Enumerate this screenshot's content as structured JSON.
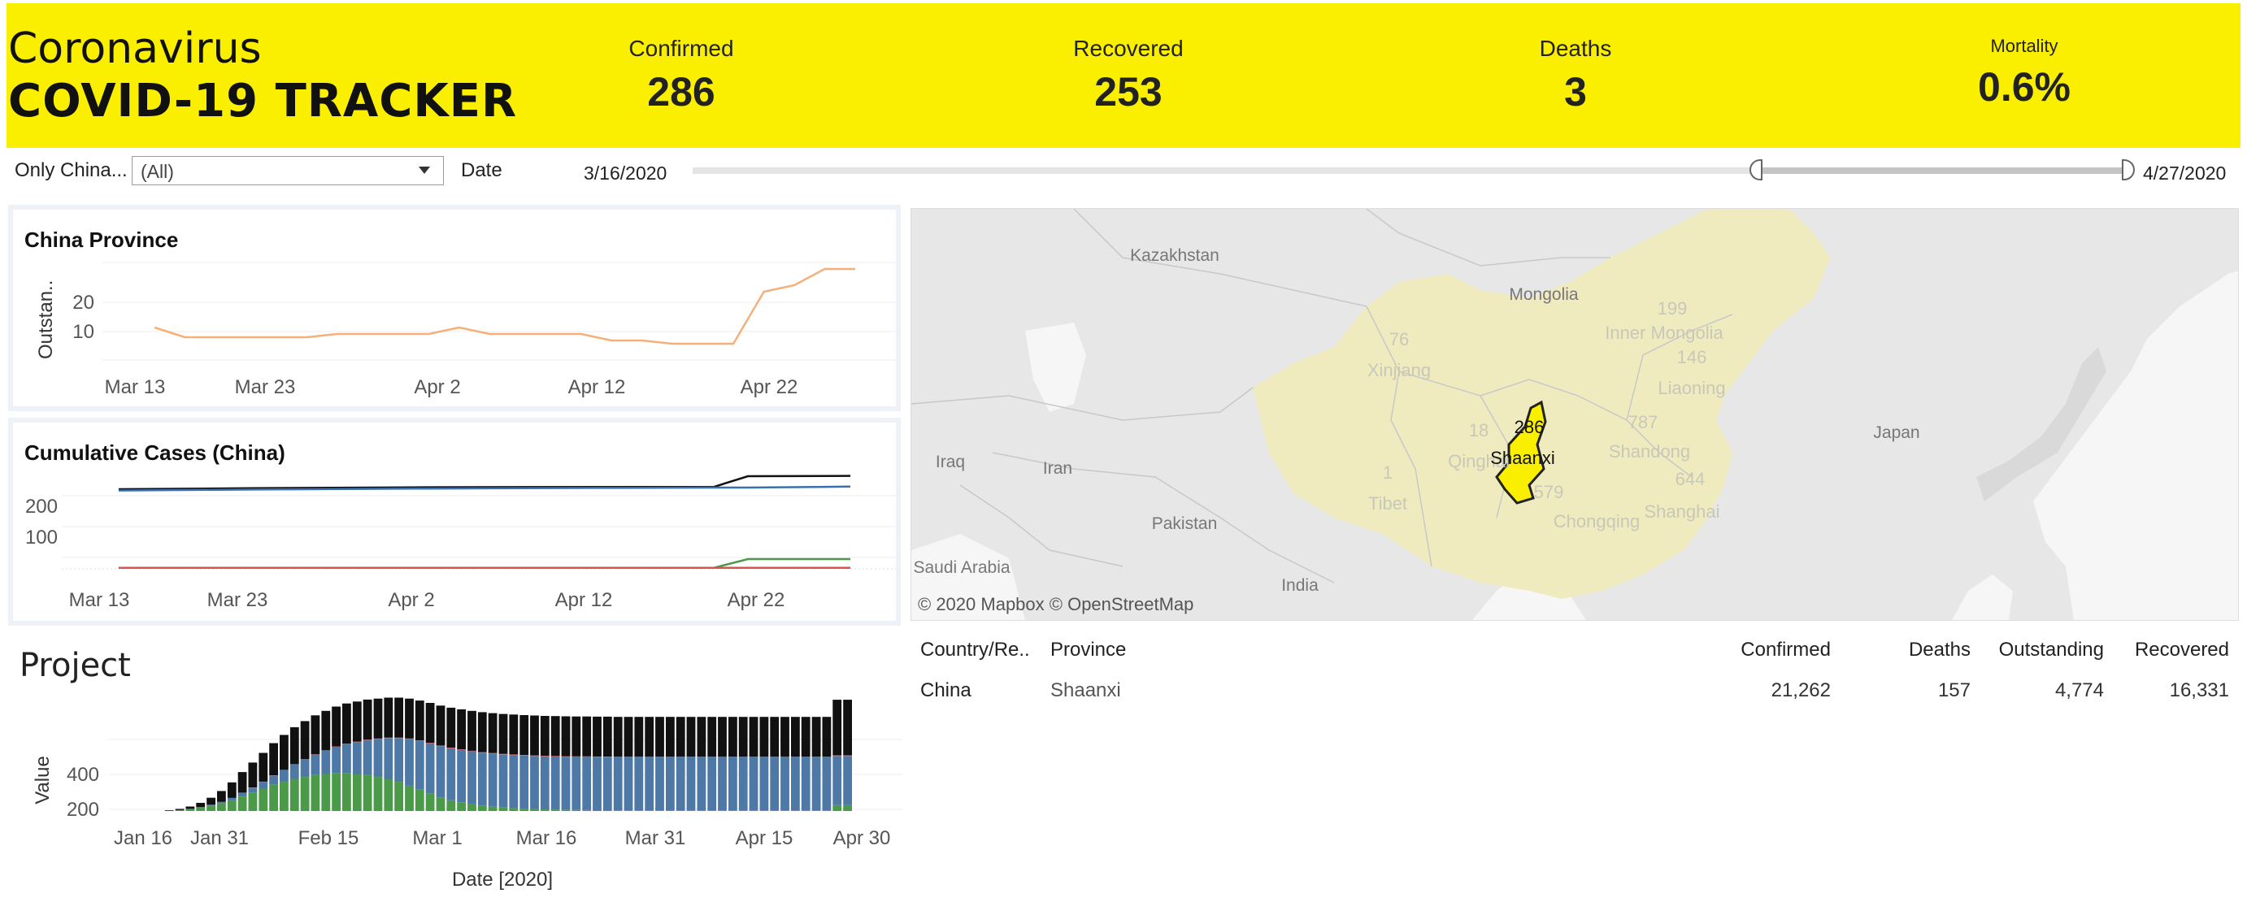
{
  "header": {
    "title_line1": "Coronavirus",
    "title_line2": "COVID-19 TRACKER",
    "background": "#fbef00",
    "kpis": [
      {
        "label": "Confirmed",
        "value": "286"
      },
      {
        "label": "Recovered",
        "value": "253"
      },
      {
        "label": "Deaths",
        "value": "3"
      },
      {
        "label": "Mortality",
        "value": "0.6%"
      }
    ]
  },
  "filters": {
    "country_label": "Only China...",
    "country_value": "(All)",
    "date_label": "Date",
    "date_start": "3/16/2020",
    "date_end": "4/27/2020",
    "slider_start_fraction": 0.74,
    "slider_end_fraction": 1.0
  },
  "china_province": {
    "title": "China Province",
    "ylabel": "Outstan..",
    "yticks": [
      "20",
      "10"
    ],
    "xticks": [
      "Mar 13",
      "Mar 23",
      "Apr 2",
      "Apr 12",
      "Apr 22"
    ]
  },
  "cumulative": {
    "title": "Cumulative Cases (China)",
    "yticks": [
      "200",
      "100"
    ],
    "xticks": [
      "Mar 13",
      "Mar 23",
      "Apr 2",
      "Apr 12",
      "Apr 22"
    ]
  },
  "project": {
    "title": "Project",
    "ylabel": "Value",
    "xlabel": "Date [2020]",
    "yticks": [
      "400",
      "200"
    ],
    "xticks": [
      "Jan 16",
      "Jan 31",
      "Feb 15",
      "Mar 1",
      "Mar 16",
      "Mar 31",
      "Apr 15",
      "Apr 30"
    ]
  },
  "map": {
    "attribution": "© 2020 Mapbox  © OpenStreetMap",
    "selected_province": "Shaanxi",
    "selected_value": "286",
    "labels": {
      "kazakhstan": "Kazakhstan",
      "mongolia": "Mongolia",
      "inner_mongolia": "Inner Mongolia",
      "xinjiang": "Xinjiang",
      "liaoning": "Liaoning",
      "japan": "Japan",
      "iraq": "Iraq",
      "iran": "Iran",
      "qinghai": "Qinghai",
      "shandong": "Shandong",
      "tibet": "Tibet",
      "shanghai": "Shanghai",
      "pakistan": "Pakistan",
      "chongqing": "Chongqing",
      "saudi_arabia": "Saudi Arabia",
      "india": "India",
      "n199": "199",
      "n76": "76",
      "n146": "146",
      "n787": "787",
      "n18": "18",
      "n644": "644",
      "n1": "1",
      "n579": "579"
    }
  },
  "table": {
    "headers": [
      "Country/Re..",
      "Province",
      "Confirmed",
      "Deaths",
      "Outstanding",
      "Recovered"
    ],
    "rows": [
      [
        "China",
        "Shaanxi",
        "21,262",
        "157",
        "4,774",
        "16,331"
      ]
    ]
  },
  "chart_data": [
    {
      "type": "line",
      "title": "China Province",
      "ylabel": "Outstan..",
      "x": [
        "Mar 13",
        "Mar 15",
        "Mar 17",
        "Mar 19",
        "Mar 21",
        "Mar 23",
        "Mar 25",
        "Mar 27",
        "Mar 29",
        "Mar 31",
        "Apr 2",
        "Apr 4",
        "Apr 6",
        "Apr 8",
        "Apr 10",
        "Apr 12",
        "Apr 14",
        "Apr 16",
        "Apr 18",
        "Apr 20",
        "Apr 22",
        "Apr 24",
        "Apr 26",
        "Apr 28"
      ],
      "series": [
        {
          "values": [
            10,
            7,
            7,
            7,
            7,
            7,
            8,
            8,
            8,
            8,
            10,
            8,
            8,
            8,
            8,
            6,
            6,
            5,
            5,
            5,
            21,
            23,
            28,
            28
          ]
        }
      ],
      "ylim": [
        0,
        30
      ],
      "color": "#f5b07a"
    },
    {
      "type": "line",
      "title": "Cumulative Cases (China)",
      "x": [
        "Mar 13",
        "Mar 23",
        "Apr 2",
        "Apr 12",
        "Apr 19",
        "Apr 22",
        "Apr 28"
      ],
      "series": [
        {
          "color": "#111111",
          "values": [
            245,
            248,
            251,
            252,
            252,
            285,
            286
          ]
        },
        {
          "color": "#3a6fb0",
          "values": [
            241,
            244,
            247,
            249,
            250,
            250,
            253
          ]
        },
        {
          "color": "#4a9a4a",
          "values": [
            3,
            3,
            3,
            3,
            3,
            30,
            30
          ]
        },
        {
          "color": "#d9534f",
          "values": [
            3,
            3,
            3,
            3,
            3,
            3,
            3
          ]
        }
      ],
      "ylim": [
        0,
        300
      ]
    },
    {
      "type": "bar",
      "title": "Project",
      "xlabel": "Date [2020]",
      "ylabel": "Value",
      "ylim": [
        0,
        560
      ],
      "xrange": [
        "Jan 16",
        "Apr 30"
      ],
      "stacked_series": [
        {
          "color": "#4a9a4a",
          "values": [
            0,
            2,
            5,
            10,
            18,
            28,
            40,
            55,
            75,
            95,
            115,
            135,
            150,
            165,
            175,
            185,
            190,
            195,
            195,
            190,
            185,
            175,
            165,
            150,
            130,
            110,
            90,
            70,
            55,
            45,
            35,
            28,
            22,
            18,
            15,
            12,
            10,
            8,
            7,
            6,
            5,
            5,
            4,
            4,
            3,
            3,
            3,
            3,
            3,
            3,
            3,
            3,
            3,
            3,
            3,
            3,
            3,
            3,
            3,
            3,
            3,
            3,
            3,
            3,
            3,
            30,
            30
          ]
        },
        {
          "color": "#4e79a7",
          "values": [
            0,
            0,
            0,
            1,
            2,
            4,
            8,
            12,
            18,
            25,
            35,
            48,
            60,
            75,
            90,
            105,
            120,
            135,
            150,
            165,
            180,
            195,
            210,
            225,
            240,
            250,
            258,
            264,
            268,
            270,
            272,
            272,
            273,
            273,
            273,
            273,
            273,
            273,
            273,
            273,
            273,
            273,
            273,
            273,
            273,
            273,
            273,
            273,
            273,
            273,
            273,
            273,
            273,
            273,
            273,
            273,
            273,
            273,
            273,
            273,
            273,
            273,
            273,
            273,
            273,
            253,
            253
          ]
        },
        {
          "color": "#e15759",
          "values": [
            0,
            0,
            0,
            0,
            0,
            0,
            0,
            0,
            1,
            1,
            1,
            1,
            1,
            1,
            1,
            2,
            2,
            2,
            2,
            2,
            2,
            3,
            3,
            3,
            3,
            3,
            3,
            3,
            3,
            3,
            3,
            3,
            3,
            3,
            3,
            3,
            3,
            3,
            3,
            3,
            3,
            3,
            3,
            3,
            3,
            3,
            3,
            3,
            3,
            3,
            3,
            3,
            3,
            3,
            3,
            3,
            3,
            3,
            3,
            3,
            3,
            3,
            3,
            3,
            3,
            3,
            3
          ]
        },
        {
          "color": "#111111",
          "values": [
            0,
            2,
            6,
            12,
            22,
            36,
            55,
            80,
            106,
            128,
            148,
            165,
            180,
            190,
            196,
            200,
            203,
            205,
            206,
            206,
            206,
            205,
            205,
            205,
            205,
            205,
            205,
            205,
            205,
            205,
            205,
            205,
            205,
            205,
            205,
            205,
            205,
            205,
            205,
            205,
            205,
            205,
            205,
            205,
            205,
            205,
            205,
            205,
            205,
            205,
            205,
            205,
            205,
            205,
            205,
            205,
            205,
            205,
            205,
            205,
            205,
            205,
            205,
            205,
            205,
            286,
            286
          ]
        }
      ]
    }
  ]
}
